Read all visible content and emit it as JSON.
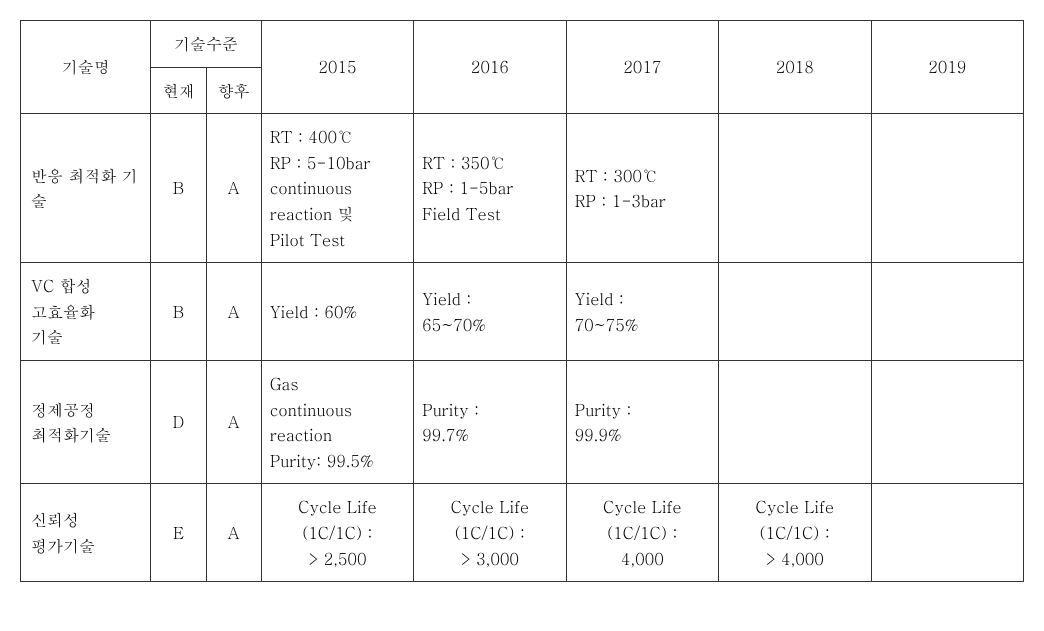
{
  "table": {
    "headers": {
      "tech_name": "기술명",
      "tech_level": "기술수준",
      "current": "현재",
      "future": "향후",
      "y2015": "2015",
      "y2016": "2016",
      "y2017": "2017",
      "y2018": "2018",
      "y2019": "2019"
    },
    "rows": [
      {
        "name": "반응 최적화 기술",
        "current": "B",
        "future": "A",
        "y2015": "RT : 400℃\nRP : 5-10bar\ncontinuous\nreaction 및\nPilot Test",
        "y2016": "RT : 350℃\nRP : 1-5bar\nField Test",
        "y2017": "RT : 300℃\nRP : 1-3bar",
        "y2018": "",
        "y2019": "",
        "align2015": "left",
        "align2016": "left",
        "align2017": "left",
        "align2018": "left"
      },
      {
        "name": "VC 합성\n고효율화\n기술",
        "current": "B",
        "future": "A",
        "y2015": "Yield : 60%",
        "y2016": "Yield :\n65~70%",
        "y2017": "Yield :\n70~75%",
        "y2018": "",
        "y2019": "",
        "align2015": "left",
        "align2016": "left",
        "align2017": "left",
        "align2018": "left"
      },
      {
        "name": "정제공정\n최적화기술",
        "current": "D",
        "future": "A",
        "y2015": "Gas\ncontinuous\nreaction\nPurity: 99.5%",
        "y2016": "Purity :\n99.7%",
        "y2017": "Purity :\n99.9%",
        "y2018": "",
        "y2019": "",
        "align2015": "left",
        "align2016": "left",
        "align2017": "left",
        "align2018": "left"
      },
      {
        "name": "신뢰성\n평가기술",
        "current": "E",
        "future": "A",
        "y2015": "Cycle Life\n(1C/1C) :\n> 2,500",
        "y2016": "Cycle Life\n(1C/1C) :\n> 3,000",
        "y2017": "Cycle Life\n(1C/1C) :\n4,000",
        "y2018": "Cycle Life\n(1C/1C) :\n> 4,000",
        "y2019": "",
        "align2015": "center",
        "align2016": "center",
        "align2017": "center",
        "align2018": "center"
      }
    ],
    "styling": {
      "border_color": "#333333",
      "background_color": "#ffffff",
      "text_color": "#000000",
      "font_size": 16,
      "line_height": 1.6,
      "col_widths": {
        "name": 130,
        "level": 55,
        "year": 152
      }
    }
  }
}
